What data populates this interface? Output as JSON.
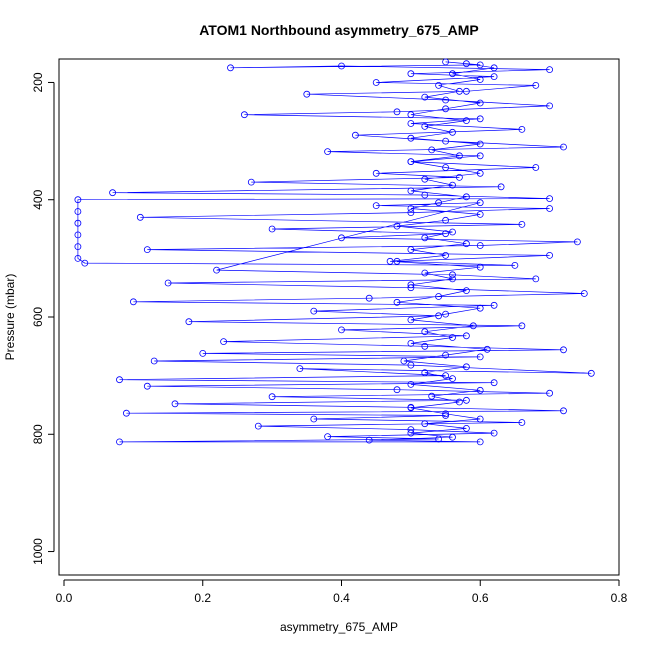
{
  "chart_data": {
    "type": "scatter",
    "title": "ATOM1 Northbound asymmetry_675_AMP",
    "xlabel": "asymmetry_675_AMP",
    "ylabel": "Pressure (mbar)",
    "xlim": [
      0,
      0.8
    ],
    "ylim": [
      1040,
      160
    ],
    "y_inverted": true,
    "grid": false,
    "point_style": "open-circle",
    "connected": true,
    "color": "#0000ff",
    "x_ticks": [
      0.0,
      0.2,
      0.4,
      0.6,
      0.8
    ],
    "x_tick_labels": [
      "0.0",
      "0.2",
      "0.4",
      "0.6",
      "0.8"
    ],
    "y_ticks": [
      200,
      400,
      600,
      800,
      1000
    ],
    "y_tick_labels": [
      "200",
      "400",
      "600",
      "800",
      "1000"
    ],
    "series": [
      {
        "values": [
          [
            0.55,
            165
          ],
          [
            0.6,
            170
          ],
          [
            0.24,
            175
          ],
          [
            0.4,
            172
          ],
          [
            0.7,
            178
          ],
          [
            0.5,
            185
          ],
          [
            0.62,
            190
          ],
          [
            0.45,
            200
          ],
          [
            0.68,
            205
          ],
          [
            0.58,
            215
          ],
          [
            0.35,
            220
          ],
          [
            0.55,
            230
          ],
          [
            0.7,
            240
          ],
          [
            0.48,
            250
          ],
          [
            0.26,
            255
          ],
          [
            0.6,
            262
          ],
          [
            0.5,
            270
          ],
          [
            0.66,
            280
          ],
          [
            0.42,
            290
          ],
          [
            0.55,
            300
          ],
          [
            0.72,
            310
          ],
          [
            0.38,
            318
          ],
          [
            0.6,
            325
          ],
          [
            0.5,
            335
          ],
          [
            0.68,
            345
          ],
          [
            0.45,
            355
          ],
          [
            0.57,
            362
          ],
          [
            0.27,
            370
          ],
          [
            0.63,
            378
          ],
          [
            0.07,
            388
          ],
          [
            0.52,
            392
          ],
          [
            0.7,
            398
          ],
          [
            0.02,
            400
          ],
          [
            0.02,
            420
          ],
          [
            0.02,
            440
          ],
          [
            0.02,
            460
          ],
          [
            0.02,
            480
          ],
          [
            0.02,
            500
          ],
          [
            0.03,
            508
          ],
          [
            0.65,
            512
          ],
          [
            0.48,
            505
          ],
          [
            0.7,
            495
          ],
          [
            0.12,
            485
          ],
          [
            0.6,
            478
          ],
          [
            0.74,
            472
          ],
          [
            0.4,
            465
          ],
          [
            0.55,
            458
          ],
          [
            0.3,
            450
          ],
          [
            0.66,
            442
          ],
          [
            0.11,
            430
          ],
          [
            0.5,
            422
          ],
          [
            0.7,
            415
          ],
          [
            0.45,
            410
          ],
          [
            0.6,
            405
          ],
          [
            0.22,
            520
          ],
          [
            0.56,
            528
          ],
          [
            0.68,
            535
          ],
          [
            0.15,
            542
          ],
          [
            0.5,
            550
          ],
          [
            0.75,
            560
          ],
          [
            0.44,
            568
          ],
          [
            0.1,
            574
          ],
          [
            0.62,
            580
          ],
          [
            0.36,
            590
          ],
          [
            0.54,
            598
          ],
          [
            0.18,
            608
          ],
          [
            0.66,
            615
          ],
          [
            0.4,
            622
          ],
          [
            0.58,
            632
          ],
          [
            0.23,
            642
          ],
          [
            0.52,
            650
          ],
          [
            0.72,
            656
          ],
          [
            0.2,
            662
          ],
          [
            0.6,
            668
          ],
          [
            0.13,
            675
          ],
          [
            0.5,
            682
          ],
          [
            0.76,
            696
          ],
          [
            0.34,
            688
          ],
          [
            0.55,
            700
          ],
          [
            0.08,
            707
          ],
          [
            0.62,
            712
          ],
          [
            0.12,
            718
          ],
          [
            0.48,
            724
          ],
          [
            0.7,
            730
          ],
          [
            0.3,
            736
          ],
          [
            0.58,
            742
          ],
          [
            0.16,
            748
          ],
          [
            0.5,
            754
          ],
          [
            0.72,
            760
          ],
          [
            0.09,
            764
          ],
          [
            0.55,
            768
          ],
          [
            0.36,
            774
          ],
          [
            0.66,
            780
          ],
          [
            0.28,
            786
          ],
          [
            0.5,
            792
          ],
          [
            0.62,
            798
          ],
          [
            0.38,
            804
          ],
          [
            0.54,
            808
          ],
          [
            0.08,
            813
          ],
          [
            0.6,
            813
          ],
          [
            0.44,
            810
          ],
          [
            0.56,
            805
          ],
          [
            0.5,
            798
          ],
          [
            0.58,
            790
          ],
          [
            0.52,
            782
          ],
          [
            0.6,
            774
          ],
          [
            0.55,
            765
          ],
          [
            0.5,
            755
          ],
          [
            0.57,
            745
          ],
          [
            0.53,
            735
          ],
          [
            0.6,
            725
          ],
          [
            0.5,
            715
          ],
          [
            0.56,
            705
          ],
          [
            0.52,
            695
          ],
          [
            0.58,
            685
          ],
          [
            0.49,
            675
          ],
          [
            0.55,
            665
          ],
          [
            0.61,
            655
          ],
          [
            0.5,
            645
          ],
          [
            0.56,
            635
          ],
          [
            0.52,
            625
          ],
          [
            0.59,
            615
          ],
          [
            0.5,
            605
          ],
          [
            0.55,
            595
          ],
          [
            0.6,
            585
          ],
          [
            0.48,
            575
          ],
          [
            0.54,
            565
          ],
          [
            0.58,
            555
          ],
          [
            0.5,
            545
          ],
          [
            0.56,
            535
          ],
          [
            0.52,
            525
          ],
          [
            0.6,
            515
          ],
          [
            0.47,
            505
          ],
          [
            0.55,
            495
          ],
          [
            0.5,
            485
          ],
          [
            0.58,
            475
          ],
          [
            0.52,
            465
          ],
          [
            0.56,
            455
          ],
          [
            0.48,
            445
          ],
          [
            0.55,
            435
          ],
          [
            0.6,
            425
          ],
          [
            0.5,
            415
          ],
          [
            0.54,
            405
          ],
          [
            0.58,
            395
          ],
          [
            0.5,
            385
          ],
          [
            0.56,
            375
          ],
          [
            0.52,
            365
          ],
          [
            0.6,
            355
          ],
          [
            0.55,
            345
          ],
          [
            0.5,
            335
          ],
          [
            0.57,
            325
          ],
          [
            0.53,
            315
          ],
          [
            0.6,
            305
          ],
          [
            0.5,
            295
          ],
          [
            0.56,
            285
          ],
          [
            0.52,
            275
          ],
          [
            0.58,
            265
          ],
          [
            0.5,
            255
          ],
          [
            0.55,
            245
          ],
          [
            0.6,
            235
          ],
          [
            0.52,
            225
          ],
          [
            0.57,
            215
          ],
          [
            0.54,
            205
          ],
          [
            0.6,
            195
          ],
          [
            0.56,
            185
          ],
          [
            0.62,
            175
          ],
          [
            0.58,
            168
          ]
        ]
      }
    ]
  }
}
